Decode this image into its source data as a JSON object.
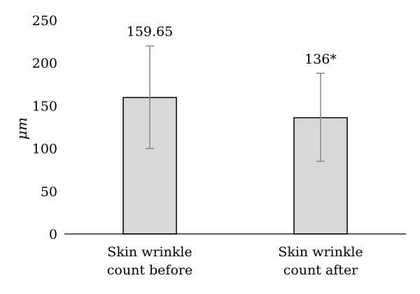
{
  "chart_data": {
    "type": "bar",
    "categories": [
      [
        "Skin wrinkle",
        "count before"
      ],
      [
        "Skin wrinkle",
        "count after"
      ]
    ],
    "values": [
      159.65,
      136
    ],
    "error_low": [
      100,
      85
    ],
    "error_high": [
      220,
      188
    ],
    "data_labels": [
      "159.65",
      "136*"
    ],
    "ylabel": "μm",
    "ylim": [
      0,
      250
    ],
    "yticks": [
      0,
      50,
      100,
      150,
      200,
      250
    ],
    "bar_color": "#d9d9d9",
    "error_bar_color": "#8c8c8c",
    "grid": false,
    "legend": "none"
  }
}
